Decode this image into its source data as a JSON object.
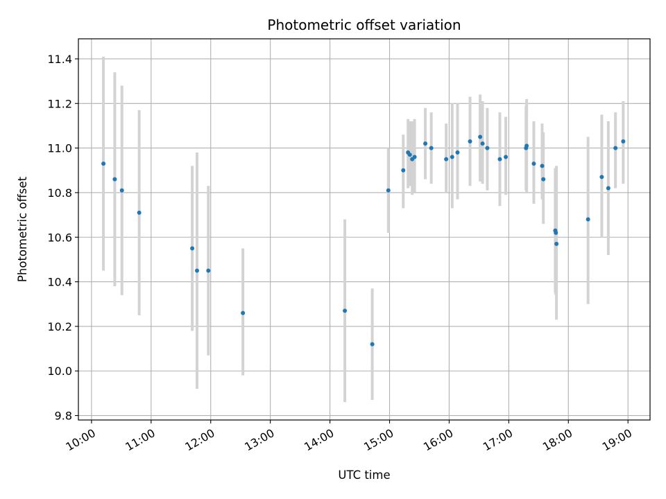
{
  "chart_data": {
    "type": "scatter",
    "title": "Photometric offset variation",
    "xlabel": "UTC time",
    "ylabel": "Photometric offset",
    "x_unit": "hours UTC",
    "xlim": [
      9.78,
      19.37
    ],
    "ylim": [
      9.78,
      11.49
    ],
    "x_ticks": [
      10,
      11,
      12,
      13,
      14,
      15,
      16,
      17,
      18,
      19
    ],
    "x_tick_labels": [
      "10:00",
      "11:00",
      "12:00",
      "13:00",
      "14:00",
      "15:00",
      "16:00",
      "17:00",
      "18:00",
      "19:00"
    ],
    "y_ticks": [
      9.8,
      10.0,
      10.2,
      10.4,
      10.6,
      10.8,
      11.0,
      11.2,
      11.4
    ],
    "y_tick_labels": [
      "9.8",
      "10.0",
      "10.2",
      "10.4",
      "10.6",
      "10.8",
      "11.0",
      "11.2",
      "11.4"
    ],
    "grid": true,
    "marker_color": "#1f77b4",
    "errorbar_color": "#d3d3d3",
    "points": [
      {
        "x": 10.2,
        "y": 10.93,
        "lo": 10.45,
        "hi": 11.41
      },
      {
        "x": 10.39,
        "y": 10.86,
        "lo": 10.38,
        "hi": 11.34
      },
      {
        "x": 10.51,
        "y": 10.81,
        "lo": 10.34,
        "hi": 11.28
      },
      {
        "x": 10.8,
        "y": 10.71,
        "lo": 10.25,
        "hi": 11.17
      },
      {
        "x": 11.69,
        "y": 10.55,
        "lo": 10.18,
        "hi": 10.92
      },
      {
        "x": 11.77,
        "y": 10.45,
        "lo": 9.92,
        "hi": 10.98
      },
      {
        "x": 11.96,
        "y": 10.45,
        "lo": 10.07,
        "hi": 10.83
      },
      {
        "x": 12.54,
        "y": 10.26,
        "lo": 9.98,
        "hi": 10.55
      },
      {
        "x": 14.25,
        "y": 10.27,
        "lo": 9.86,
        "hi": 10.68
      },
      {
        "x": 14.71,
        "y": 10.12,
        "lo": 9.87,
        "hi": 10.37
      },
      {
        "x": 14.98,
        "y": 10.81,
        "lo": 10.62,
        "hi": 11.0
      },
      {
        "x": 15.23,
        "y": 10.9,
        "lo": 10.73,
        "hi": 11.06
      },
      {
        "x": 15.31,
        "y": 10.98,
        "lo": 10.82,
        "hi": 11.13
      },
      {
        "x": 15.34,
        "y": 10.97,
        "lo": 10.83,
        "hi": 11.12
      },
      {
        "x": 15.38,
        "y": 10.95,
        "lo": 10.79,
        "hi": 11.12
      },
      {
        "x": 15.42,
        "y": 10.96,
        "lo": 10.8,
        "hi": 11.13
      },
      {
        "x": 15.6,
        "y": 11.02,
        "lo": 10.86,
        "hi": 11.18
      },
      {
        "x": 15.7,
        "y": 11.0,
        "lo": 10.84,
        "hi": 11.16
      },
      {
        "x": 15.95,
        "y": 10.95,
        "lo": 10.8,
        "hi": 11.11
      },
      {
        "x": 16.05,
        "y": 10.96,
        "lo": 10.73,
        "hi": 11.2
      },
      {
        "x": 16.14,
        "y": 10.98,
        "lo": 10.77,
        "hi": 11.2
      },
      {
        "x": 16.35,
        "y": 11.03,
        "lo": 10.83,
        "hi": 11.23
      },
      {
        "x": 16.52,
        "y": 11.05,
        "lo": 10.85,
        "hi": 11.24
      },
      {
        "x": 16.56,
        "y": 11.02,
        "lo": 10.84,
        "hi": 11.21
      },
      {
        "x": 16.64,
        "y": 11.0,
        "lo": 10.81,
        "hi": 11.18
      },
      {
        "x": 16.85,
        "y": 10.95,
        "lo": 10.74,
        "hi": 11.16
      },
      {
        "x": 16.95,
        "y": 10.96,
        "lo": 10.79,
        "hi": 11.14
      },
      {
        "x": 17.29,
        "y": 11.0,
        "lo": 10.81,
        "hi": 11.19
      },
      {
        "x": 17.3,
        "y": 11.01,
        "lo": 10.8,
        "hi": 11.22
      },
      {
        "x": 17.42,
        "y": 10.93,
        "lo": 10.75,
        "hi": 11.12
      },
      {
        "x": 17.56,
        "y": 10.92,
        "lo": 10.77,
        "hi": 11.11
      },
      {
        "x": 17.58,
        "y": 10.86,
        "lo": 10.66,
        "hi": 11.07
      },
      {
        "x": 17.78,
        "y": 10.63,
        "lo": 10.35,
        "hi": 10.91
      },
      {
        "x": 17.79,
        "y": 10.62,
        "lo": 10.34,
        "hi": 10.9
      },
      {
        "x": 17.8,
        "y": 10.57,
        "lo": 10.23,
        "hi": 10.92
      },
      {
        "x": 18.33,
        "y": 10.68,
        "lo": 10.3,
        "hi": 11.05
      },
      {
        "x": 18.56,
        "y": 10.87,
        "lo": 10.6,
        "hi": 11.15
      },
      {
        "x": 18.67,
        "y": 10.82,
        "lo": 10.52,
        "hi": 11.12
      },
      {
        "x": 18.79,
        "y": 11.0,
        "lo": 10.82,
        "hi": 11.16
      },
      {
        "x": 18.92,
        "y": 11.03,
        "lo": 10.84,
        "hi": 11.21
      }
    ]
  }
}
